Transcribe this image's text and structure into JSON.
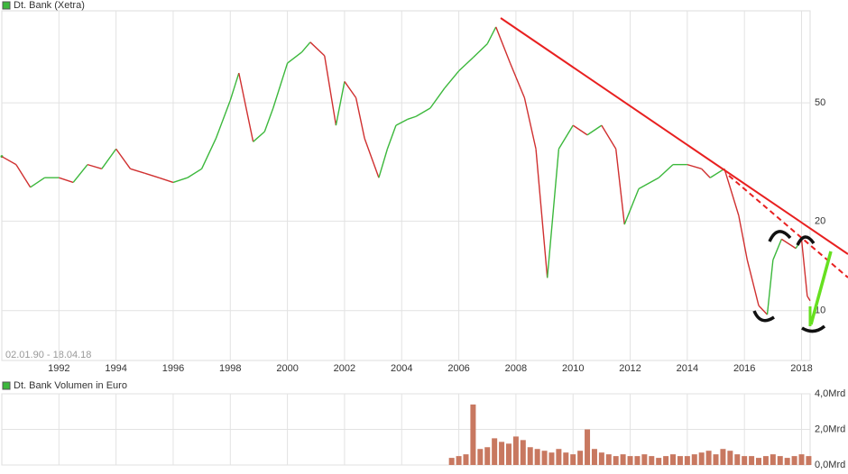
{
  "chart_data": [
    {
      "type": "line",
      "legend": "Dt. Bank (Xetra)",
      "range_label": "02.01.90 - 18.04.18",
      "log_scale": true,
      "grid": true,
      "up_color": "#3cb83c",
      "down_color": "#d03030",
      "xlim": [
        1990,
        2018.3
      ],
      "xticks": [
        1992,
        1994,
        1996,
        1998,
        2000,
        2002,
        2004,
        2006,
        2008,
        2010,
        2012,
        2014,
        2016,
        2018
      ],
      "ylim": [
        6.8,
        102
      ],
      "yticks": [
        10,
        20,
        50
      ],
      "series": [
        {
          "name": "Dt. Bank (Xetra)",
          "color": "#3cb83c",
          "x": [
            1990,
            1990.5,
            1991,
            1991.5,
            1992,
            1992.5,
            1993,
            1993.5,
            1994,
            1994.5,
            1995,
            1995.5,
            1996,
            1996.5,
            1997,
            1997.5,
            1998,
            1998.3,
            1998.8,
            1999.2,
            1999.5,
            2000,
            2000.5,
            2000.8,
            2001.3,
            2001.7,
            2002,
            2002.4,
            2002.7,
            2003.2,
            2003.5,
            2003.8,
            2004.2,
            2004.5,
            2005,
            2005.5,
            2006,
            2006.5,
            2007,
            2007.3,
            2007.8,
            2008.3,
            2008.7,
            2009.1,
            2009.5,
            2010,
            2010.5,
            2011,
            2011.5,
            2011.8,
            2012.3,
            2013,
            2013.5,
            2014,
            2014.5,
            2014.8,
            2015.3,
            2015.8,
            2016.1,
            2016.5,
            2016.8,
            2017,
            2017.3,
            2017.8,
            2018,
            2018.2,
            2018.3
          ],
          "values": [
            33,
            31,
            26,
            28,
            28,
            27,
            31,
            30,
            35,
            30,
            29,
            28,
            27,
            28,
            30,
            38,
            51,
            63,
            37,
            40,
            48,
            68,
            74,
            80,
            72,
            42,
            59,
            52,
            38,
            28,
            35,
            42,
            44,
            45,
            48,
            56,
            64,
            71,
            79,
            90,
            68,
            52,
            35,
            12.9,
            35,
            42,
            39,
            42,
            35,
            19.5,
            25.7,
            28,
            31,
            31,
            30,
            28,
            30,
            20.9,
            14.8,
            10.4,
            9.7,
            14.8,
            17.4,
            16.2,
            17.4,
            11.2,
            10.8
          ]
        }
      ]
    },
    {
      "type": "bar",
      "legend": "Dt. Bank Volumen in Euro",
      "grid": true,
      "color": "#c87860",
      "xlim": [
        1990,
        2018.3
      ],
      "xticks": [
        1992,
        1994,
        1996,
        1998,
        2000,
        2002,
        2004,
        2006,
        2008,
        2010,
        2012,
        2014,
        2016,
        2018
      ],
      "ylim": [
        0,
        4
      ],
      "yticks": [
        {
          "value": 0,
          "label": "0,0Mrd"
        },
        {
          "value": 2,
          "label": "2,0Mrd"
        },
        {
          "value": 4,
          "label": "4,0Mrd"
        }
      ],
      "x": [
        2005.75,
        2006,
        2006.25,
        2006.5,
        2006.75,
        2007,
        2007.25,
        2007.5,
        2007.75,
        2008,
        2008.25,
        2008.5,
        2008.75,
        2009,
        2009.25,
        2009.5,
        2009.75,
        2010,
        2010.25,
        2010.5,
        2010.75,
        2011,
        2011.25,
        2011.5,
        2011.75,
        2012,
        2012.25,
        2012.5,
        2012.75,
        2013,
        2013.25,
        2013.5,
        2013.75,
        2014,
        2014.25,
        2014.5,
        2014.75,
        2015,
        2015.25,
        2015.5,
        2015.75,
        2016,
        2016.25,
        2016.5,
        2016.75,
        2017,
        2017.25,
        2017.5,
        2017.75,
        2018,
        2018.25
      ],
      "values": [
        0.4,
        0.5,
        0.6,
        3.4,
        0.9,
        1.0,
        1.5,
        1.3,
        1.2,
        1.6,
        1.4,
        1.0,
        0.9,
        0.8,
        0.7,
        0.9,
        0.7,
        0.6,
        0.8,
        2.0,
        0.9,
        0.7,
        0.6,
        0.5,
        0.6,
        0.5,
        0.5,
        0.6,
        0.5,
        0.4,
        0.5,
        0.6,
        0.5,
        0.5,
        0.6,
        0.7,
        0.8,
        0.6,
        0.9,
        0.8,
        0.6,
        0.5,
        0.5,
        0.4,
        0.5,
        0.6,
        0.5,
        0.4,
        0.5,
        0.6,
        0.5
      ]
    }
  ]
}
